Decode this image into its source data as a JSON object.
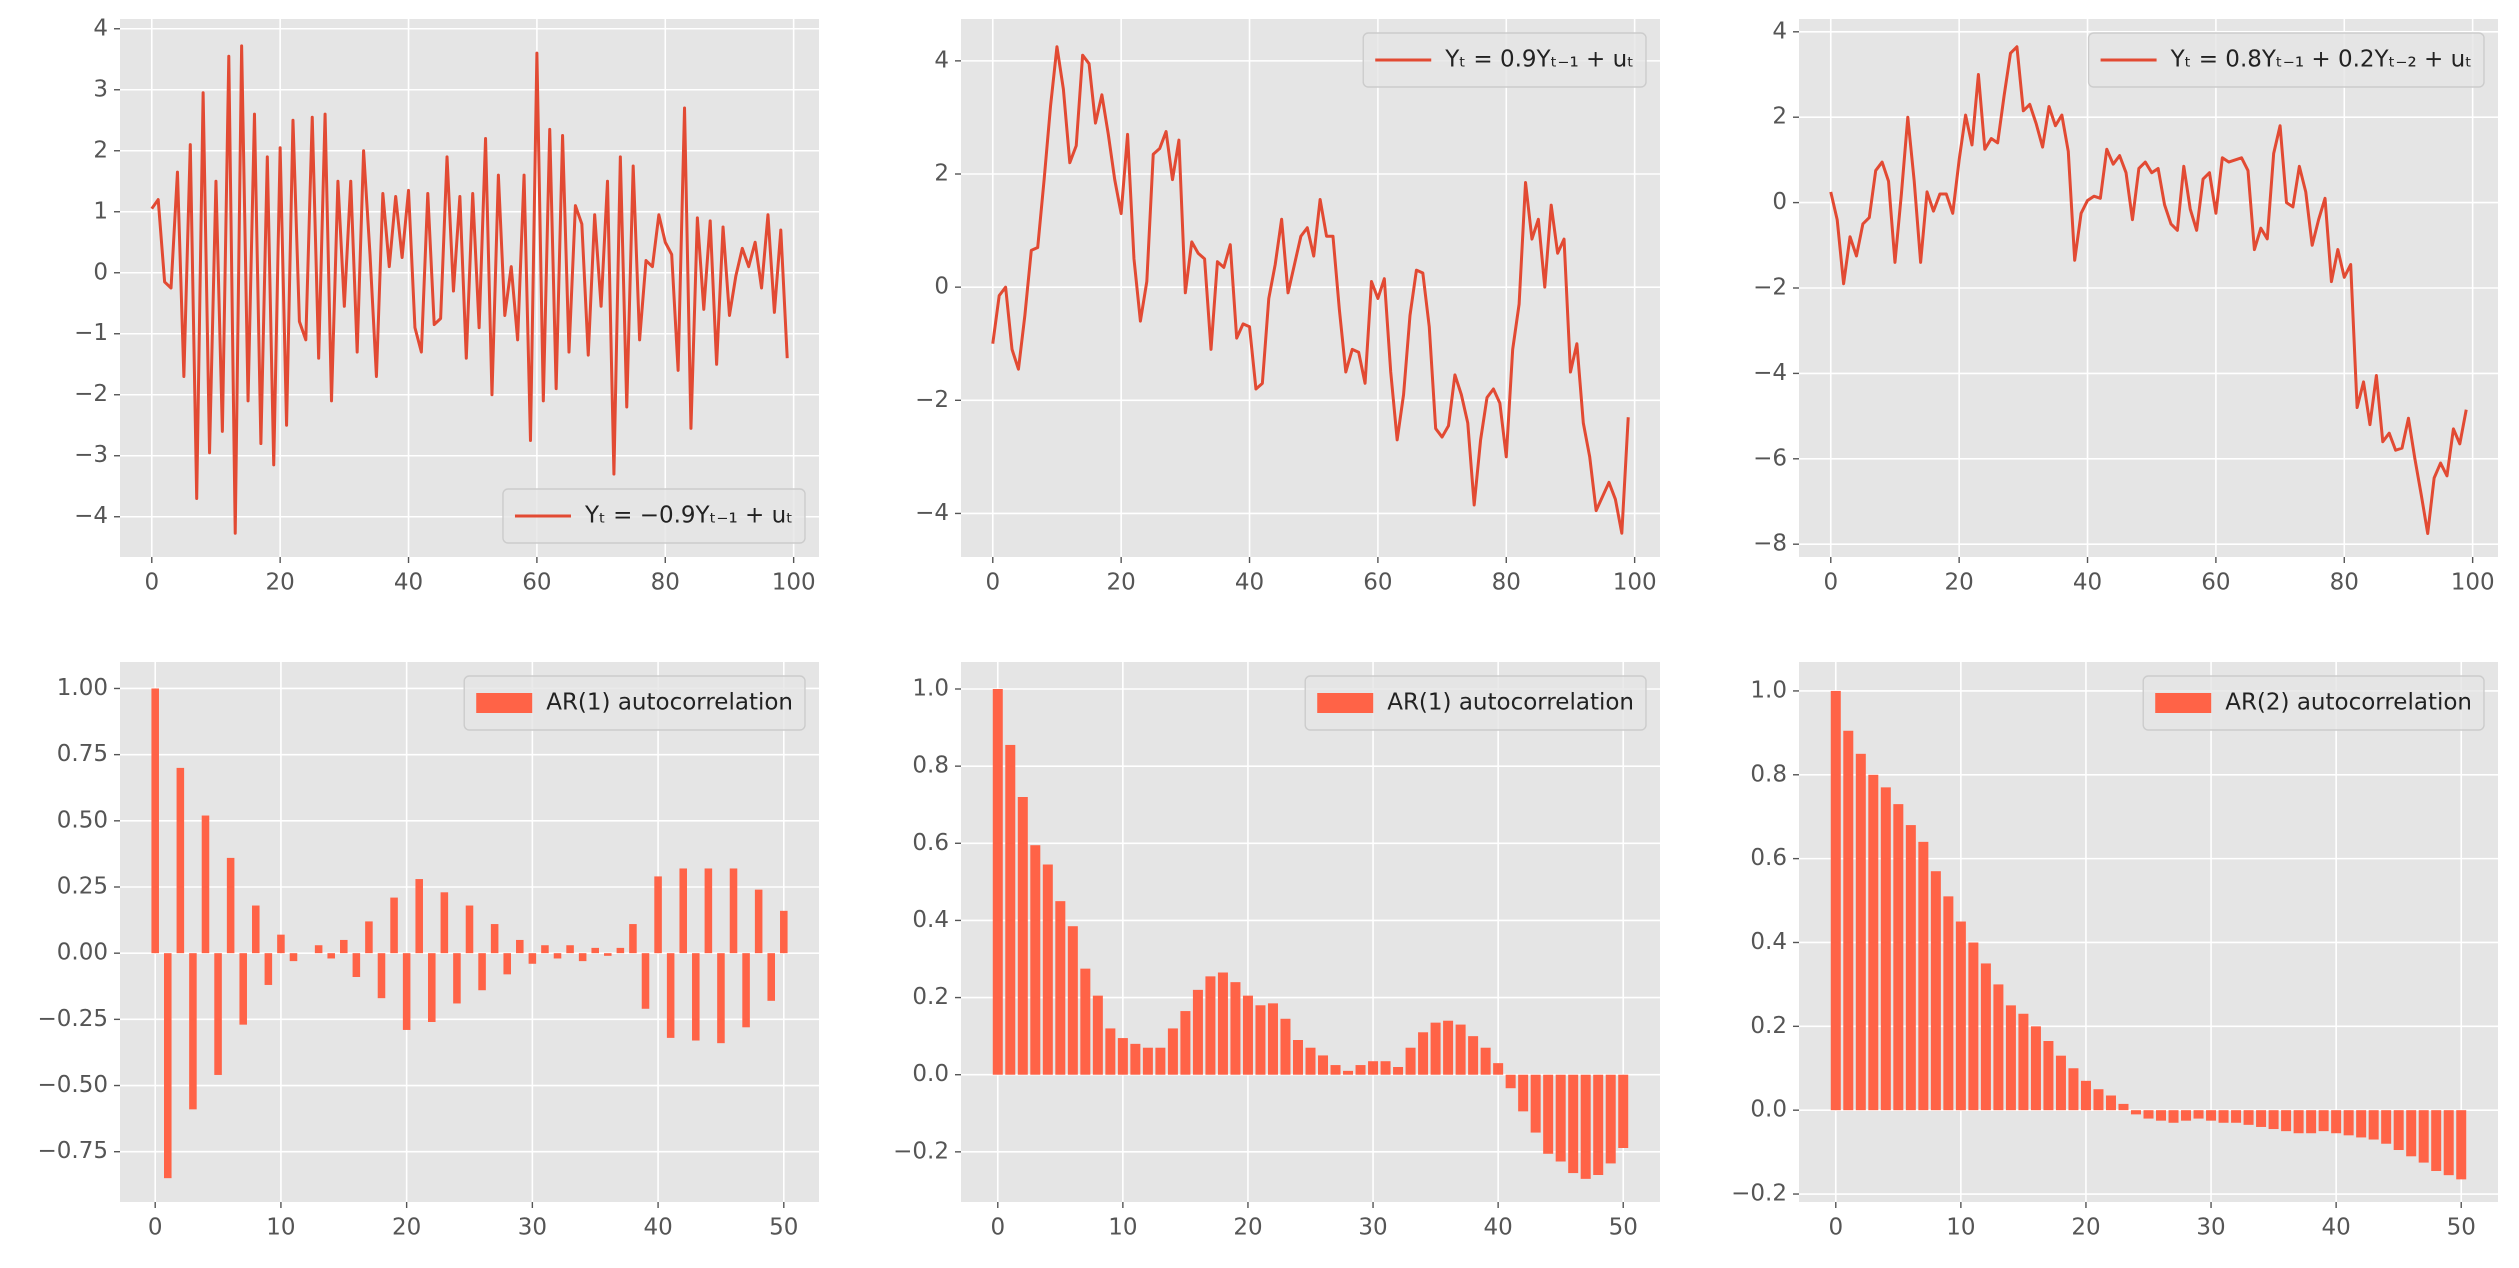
{
  "chart_data": [
    {
      "type": "line",
      "legend": "lower right",
      "grid": true,
      "series": [
        {
          "name": "Yₜ = −0.9Yₜ₋₁ + uₜ",
          "color": "#E24A33",
          "values": [
            1.05,
            1.2,
            -0.15,
            -0.25,
            1.65,
            -1.7,
            2.1,
            -3.7,
            2.95,
            -2.95,
            1.5,
            -2.6,
            3.55,
            -4.27,
            3.72,
            -2.1,
            2.6,
            -2.8,
            1.9,
            -3.15,
            2.05,
            -2.5,
            2.5,
            -0.8,
            -1.1,
            2.55,
            -1.4,
            2.6,
            -2.1,
            1.5,
            -0.55,
            1.5,
            -1.3,
            2.0,
            0.3,
            -1.7,
            1.3,
            0.1,
            1.25,
            0.25,
            1.35,
            -0.9,
            -1.3,
            1.3,
            -0.85,
            -0.75,
            1.9,
            -0.3,
            1.25,
            -1.4,
            1.3,
            -0.9,
            2.2,
            -2.0,
            1.6,
            -0.7,
            0.1,
            -1.1,
            1.6,
            -2.75,
            3.6,
            -2.1,
            2.35,
            -1.9,
            2.25,
            -1.3,
            1.1,
            0.8,
            -1.35,
            0.95,
            -0.55,
            1.5,
            -3.3,
            1.9,
            -2.2,
            1.75,
            -1.1,
            0.2,
            0.1,
            0.95,
            0.5,
            0.3,
            -1.6,
            2.7,
            -2.55,
            0.9,
            -0.6,
            0.85,
            -1.5,
            0.75,
            -0.7,
            -0.05,
            0.4,
            0.1,
            0.5,
            -0.25,
            0.95,
            -0.65,
            0.7,
            -1.4
          ]
        }
      ],
      "x": [
        0,
        1,
        2,
        3,
        4,
        5,
        6,
        7,
        8,
        9,
        10,
        11,
        12,
        13,
        14,
        15,
        16,
        17,
        18,
        19,
        20,
        21,
        22,
        23,
        24,
        25,
        26,
        27,
        28,
        29,
        30,
        31,
        32,
        33,
        34,
        35,
        36,
        37,
        38,
        39,
        40,
        41,
        42,
        43,
        44,
        45,
        46,
        47,
        48,
        49,
        50,
        51,
        52,
        53,
        54,
        55,
        56,
        57,
        58,
        59,
        60,
        61,
        62,
        63,
        64,
        65,
        66,
        67,
        68,
        69,
        70,
        71,
        72,
        73,
        74,
        75,
        76,
        77,
        78,
        79,
        80,
        81,
        82,
        83,
        84,
        85,
        86,
        87,
        88,
        89,
        90,
        91,
        92,
        93,
        94,
        95,
        96,
        97,
        98,
        99
      ],
      "xlim": [
        -4.95,
        103.95
      ],
      "xticks": [
        0,
        20,
        40,
        60,
        80,
        100
      ],
      "ylim": [
        -4.66,
        4.16
      ],
      "yticks": [
        {
          "value": -4,
          "label": "−4"
        },
        {
          "value": -3,
          "label": "−3"
        },
        {
          "value": -2,
          "label": "−2"
        },
        {
          "value": -1,
          "label": "−1"
        },
        0,
        1,
        2,
        3,
        4
      ]
    },
    {
      "type": "line",
      "legend": "upper right",
      "grid": true,
      "series": [
        {
          "name": "Yₜ = 0.9Yₜ₋₁ + uₜ",
          "color": "#E24A33",
          "values": [
            -1.0,
            -0.15,
            0.0,
            -1.1,
            -1.45,
            -0.5,
            0.65,
            0.7,
            1.9,
            3.2,
            4.25,
            3.5,
            2.2,
            2.5,
            4.1,
            3.95,
            2.9,
            3.4,
            2.7,
            1.9,
            1.3,
            2.7,
            0.5,
            -0.6,
            0.1,
            2.35,
            2.45,
            2.75,
            1.9,
            2.6,
            -0.1,
            0.8,
            0.6,
            0.5,
            -1.1,
            0.45,
            0.35,
            0.75,
            -0.9,
            -0.65,
            -0.7,
            -1.8,
            -1.7,
            -0.2,
            0.4,
            1.2,
            -0.1,
            0.4,
            0.9,
            1.05,
            0.55,
            1.55,
            0.9,
            0.9,
            -0.4,
            -1.5,
            -1.1,
            -1.15,
            -1.7,
            0.1,
            -0.2,
            0.15,
            -1.5,
            -2.7,
            -1.9,
            -0.5,
            0.3,
            0.25,
            -0.7,
            -2.5,
            -2.65,
            -2.45,
            -1.55,
            -1.9,
            -2.4,
            -3.85,
            -2.7,
            -1.95,
            -1.8,
            -2.05,
            -3.0,
            -1.1,
            -0.3,
            1.85,
            0.85,
            1.2,
            0.0,
            1.45,
            0.6,
            0.85,
            -1.5,
            -1.0,
            -2.4,
            -3.0,
            -3.95,
            -3.7,
            -3.45,
            -3.75,
            -4.35,
            -2.3
          ]
        }
      ],
      "x": [
        0,
        1,
        2,
        3,
        4,
        5,
        6,
        7,
        8,
        9,
        10,
        11,
        12,
        13,
        14,
        15,
        16,
        17,
        18,
        19,
        20,
        21,
        22,
        23,
        24,
        25,
        26,
        27,
        28,
        29,
        30,
        31,
        32,
        33,
        34,
        35,
        36,
        37,
        38,
        39,
        40,
        41,
        42,
        43,
        44,
        45,
        46,
        47,
        48,
        49,
        50,
        51,
        52,
        53,
        54,
        55,
        56,
        57,
        58,
        59,
        60,
        61,
        62,
        63,
        64,
        65,
        66,
        67,
        68,
        69,
        70,
        71,
        72,
        73,
        74,
        75,
        76,
        77,
        78,
        79,
        80,
        81,
        82,
        83,
        84,
        85,
        86,
        87,
        88,
        89,
        90,
        91,
        92,
        93,
        94,
        95,
        96,
        97,
        98,
        99
      ],
      "xlim": [
        -4.95,
        103.95
      ],
      "xticks": [
        0,
        20,
        40,
        60,
        80,
        100
      ],
      "ylim": [
        -4.77,
        4.74
      ],
      "yticks": [
        {
          "value": -4,
          "label": "−4"
        },
        {
          "value": -2,
          "label": "−2"
        },
        0,
        2,
        4
      ]
    },
    {
      "type": "line",
      "legend": "upper right",
      "grid": true,
      "series": [
        {
          "name": "Yₜ = 0.8Yₜ₋₁ + 0.2Yₜ₋₂ + uₜ",
          "color": "#E24A33",
          "values": [
            0.25,
            -0.4,
            -1.9,
            -0.8,
            -1.25,
            -0.5,
            -0.35,
            0.75,
            0.95,
            0.5,
            -1.4,
            0.2,
            2.0,
            0.5,
            -1.4,
            0.25,
            -0.2,
            0.2,
            0.2,
            -0.25,
            1.0,
            2.05,
            1.35,
            3.0,
            1.25,
            1.5,
            1.4,
            2.5,
            3.5,
            3.65,
            2.15,
            2.3,
            1.85,
            1.3,
            2.25,
            1.8,
            2.05,
            1.2,
            -1.35,
            -0.25,
            0.05,
            0.15,
            0.1,
            1.25,
            0.9,
            1.1,
            0.7,
            -0.4,
            0.8,
            0.95,
            0.7,
            0.8,
            -0.05,
            -0.5,
            -0.65,
            0.85,
            -0.15,
            -0.65,
            0.55,
            0.7,
            -0.25,
            1.05,
            0.95,
            1.0,
            1.05,
            0.75,
            -1.1,
            -0.6,
            -0.85,
            1.15,
            1.8,
            0.0,
            -0.1,
            0.85,
            0.25,
            -1.0,
            -0.4,
            0.1,
            -1.85,
            -1.1,
            -1.75,
            -1.45,
            -4.8,
            -4.2,
            -5.2,
            -4.05,
            -5.6,
            -5.4,
            -5.8,
            -5.75,
            -5.05,
            -6.0,
            -6.85,
            -7.75,
            -6.45,
            -6.1,
            -6.4,
            -5.3,
            -5.65,
            -4.85
          ]
        }
      ],
      "x": [
        0,
        1,
        2,
        3,
        4,
        5,
        6,
        7,
        8,
        9,
        10,
        11,
        12,
        13,
        14,
        15,
        16,
        17,
        18,
        19,
        20,
        21,
        22,
        23,
        24,
        25,
        26,
        27,
        28,
        29,
        30,
        31,
        32,
        33,
        34,
        35,
        36,
        37,
        38,
        39,
        40,
        41,
        42,
        43,
        44,
        45,
        46,
        47,
        48,
        49,
        50,
        51,
        52,
        53,
        54,
        55,
        56,
        57,
        58,
        59,
        60,
        61,
        62,
        63,
        64,
        65,
        66,
        67,
        68,
        69,
        70,
        71,
        72,
        73,
        74,
        75,
        76,
        77,
        78,
        79,
        80,
        81,
        82,
        83,
        84,
        85,
        86,
        87,
        88,
        89,
        90,
        91,
        92,
        93,
        94,
        95,
        96,
        97,
        98,
        99
      ],
      "xlim": [
        -4.95,
        103.95
      ],
      "xticks": [
        0,
        20,
        40,
        60,
        80,
        100
      ],
      "ylim": [
        -8.3,
        4.3
      ],
      "yticks": [
        {
          "value": -8,
          "label": "−8"
        },
        {
          "value": -6,
          "label": "−6"
        },
        {
          "value": -4,
          "label": "−4"
        },
        {
          "value": -2,
          "label": "−2"
        },
        0,
        2,
        4
      ]
    },
    {
      "type": "bar",
      "legend": "upper right",
      "grid": true,
      "bar_width": 0.6,
      "series": [
        {
          "name": "AR(1) autocorrelation",
          "color": "#FF6347",
          "values": [
            1.0,
            -0.85,
            0.7,
            -0.59,
            0.52,
            -0.46,
            0.36,
            -0.27,
            0.18,
            -0.12,
            0.07,
            -0.03,
            0.0,
            0.03,
            -0.02,
            0.05,
            -0.09,
            0.12,
            -0.17,
            0.21,
            -0.29,
            0.28,
            -0.26,
            0.23,
            -0.19,
            0.18,
            -0.14,
            0.11,
            -0.08,
            0.05,
            -0.04,
            0.03,
            -0.02,
            0.03,
            -0.03,
            0.02,
            -0.01,
            0.02,
            0.11,
            -0.21,
            0.29,
            -0.32,
            0.32,
            -0.33,
            0.32,
            -0.34,
            0.32,
            -0.28,
            0.24,
            -0.18,
            0.16
          ]
        }
      ],
      "x": [
        0,
        1,
        2,
        3,
        4,
        5,
        6,
        7,
        8,
        9,
        10,
        11,
        12,
        13,
        14,
        15,
        16,
        17,
        18,
        19,
        20,
        21,
        22,
        23,
        24,
        25,
        26,
        27,
        28,
        29,
        30,
        31,
        32,
        33,
        34,
        35,
        36,
        37,
        38,
        39,
        40,
        41,
        42,
        43,
        44,
        45,
        46,
        47,
        48,
        49,
        50
      ],
      "xlim": [
        -2.8,
        52.8
      ],
      "xticks": [
        0,
        10,
        20,
        30,
        40,
        50
      ],
      "ylim": [
        -0.94,
        1.1
      ],
      "yticks": [
        {
          "value": -0.75,
          "label": "−0.75"
        },
        {
          "value": -0.5,
          "label": "−0.50"
        },
        {
          "value": -0.25,
          "label": "−0.25"
        },
        {
          "value": 0,
          "label": "0.00"
        },
        {
          "value": 0.25,
          "label": "0.25"
        },
        {
          "value": 0.5,
          "label": "0.50"
        },
        {
          "value": 0.75,
          "label": "0.75"
        },
        {
          "value": 1,
          "label": "1.00"
        }
      ]
    },
    {
      "type": "bar",
      "legend": "upper right",
      "grid": true,
      "bar_width": 0.8,
      "series": [
        {
          "name": "AR(1) autocorrelation",
          "color": "#FF6347",
          "values": [
            1.0,
            0.855,
            0.72,
            0.595,
            0.545,
            0.45,
            0.385,
            0.275,
            0.205,
            0.12,
            0.095,
            0.08,
            0.07,
            0.07,
            0.12,
            0.165,
            0.22,
            0.255,
            0.265,
            0.24,
            0.205,
            0.18,
            0.185,
            0.145,
            0.09,
            0.07,
            0.05,
            0.025,
            0.01,
            0.025,
            0.035,
            0.035,
            0.02,
            0.07,
            0.11,
            0.135,
            0.14,
            0.13,
            0.1,
            0.07,
            0.03,
            -0.035,
            -0.095,
            -0.15,
            -0.205,
            -0.225,
            -0.255,
            -0.27,
            -0.26,
            -0.23,
            -0.19
          ]
        }
      ],
      "x": [
        0,
        1,
        2,
        3,
        4,
        5,
        6,
        7,
        8,
        9,
        10,
        11,
        12,
        13,
        14,
        15,
        16,
        17,
        18,
        19,
        20,
        21,
        22,
        23,
        24,
        25,
        26,
        27,
        28,
        29,
        30,
        31,
        32,
        33,
        34,
        35,
        36,
        37,
        38,
        39,
        40,
        41,
        42,
        43,
        44,
        45,
        46,
        47,
        48,
        49,
        50
      ],
      "xlim": [
        -2.94,
        52.94
      ],
      "xticks": [
        0,
        10,
        20,
        30,
        40,
        50
      ],
      "ylim": [
        -0.33,
        1.07
      ],
      "yticks": [
        {
          "value": -0.2,
          "label": "−0.2"
        },
        {
          "value": 0,
          "label": "0.0"
        },
        {
          "value": 0.2,
          "label": "0.2"
        },
        {
          "value": 0.4,
          "label": "0.4"
        },
        {
          "value": 0.6,
          "label": "0.6"
        },
        {
          "value": 0.8,
          "label": "0.8"
        },
        {
          "value": 1,
          "label": "1.0"
        }
      ]
    },
    {
      "type": "bar",
      "legend": "upper right",
      "grid": true,
      "bar_width": 0.8,
      "series": [
        {
          "name": "AR(2) autocorrelation",
          "color": "#FF6347",
          "values": [
            1.0,
            0.905,
            0.85,
            0.8,
            0.77,
            0.73,
            0.68,
            0.64,
            0.57,
            0.51,
            0.45,
            0.4,
            0.35,
            0.3,
            0.25,
            0.23,
            0.2,
            0.165,
            0.13,
            0.1,
            0.07,
            0.05,
            0.035,
            0.015,
            -0.01,
            -0.02,
            -0.025,
            -0.03,
            -0.025,
            -0.02,
            -0.025,
            -0.03,
            -0.03,
            -0.035,
            -0.04,
            -0.045,
            -0.05,
            -0.055,
            -0.055,
            -0.05,
            -0.055,
            -0.06,
            -0.065,
            -0.07,
            -0.08,
            -0.095,
            -0.11,
            -0.125,
            -0.145,
            -0.155,
            -0.165
          ]
        }
      ],
      "x": [
        0,
        1,
        2,
        3,
        4,
        5,
        6,
        7,
        8,
        9,
        10,
        11,
        12,
        13,
        14,
        15,
        16,
        17,
        18,
        19,
        20,
        21,
        22,
        23,
        24,
        25,
        26,
        27,
        28,
        29,
        30,
        31,
        32,
        33,
        34,
        35,
        36,
        37,
        38,
        39,
        40,
        41,
        42,
        43,
        44,
        45,
        46,
        47,
        48,
        49,
        50
      ],
      "xlim": [
        -2.94,
        52.94
      ],
      "xticks": [
        0,
        10,
        20,
        30,
        40,
        50
      ],
      "ylim": [
        -0.219,
        1.069
      ],
      "yticks": [
        {
          "value": -0.2,
          "label": "−0.2"
        },
        {
          "value": 0,
          "label": "0.0"
        },
        {
          "value": 0.2,
          "label": "0.2"
        },
        {
          "value": 0.4,
          "label": "0.4"
        },
        {
          "value": 0.6,
          "label": "0.6"
        },
        {
          "value": 0.8,
          "label": "0.8"
        },
        {
          "value": 1,
          "label": "1.0"
        }
      ]
    }
  ]
}
